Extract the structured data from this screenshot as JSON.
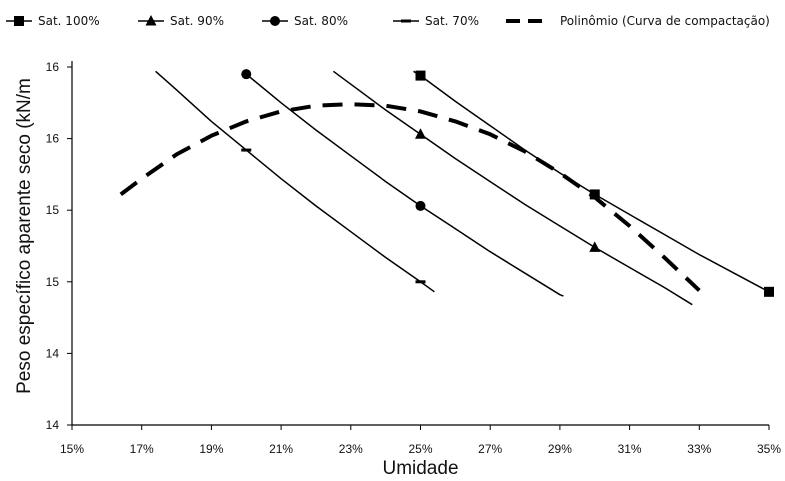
{
  "chart_data": {
    "type": "line",
    "title": "",
    "xlabel": "Umidade",
    "ylabel": "Peso específico aparente seco (kN/m",
    "x_ticks": [
      "15%",
      "17%",
      "19%",
      "21%",
      "23%",
      "25%",
      "27%",
      "29%",
      "31%",
      "33%",
      "35%"
    ],
    "x_range": [
      15,
      35
    ],
    "y_ticks": [
      "14",
      "14",
      "15",
      "15",
      "16",
      "16"
    ],
    "y_range": [
      14,
      16.5
    ],
    "grid": false,
    "legend_position": "top",
    "series": [
      {
        "name": "Sat. 100%",
        "marker": "square",
        "dash": "solid",
        "x": [
          24.8,
          25,
          26,
          27,
          28,
          29,
          30,
          31,
          32,
          33,
          34,
          35
        ],
        "y": [
          16.47,
          16.44,
          16.26,
          16.09,
          15.92,
          15.76,
          15.61,
          15.47,
          15.33,
          15.19,
          15.06,
          14.93
        ],
        "marked_x": [
          25,
          30,
          35
        ],
        "marked_y": [
          16.44,
          15.61,
          14.93
        ]
      },
      {
        "name": "Sat. 90%",
        "marker": "triangle",
        "dash": "solid",
        "x": [
          22.5,
          23,
          24,
          25,
          26,
          27,
          28,
          29,
          30,
          31,
          32,
          32.8
        ],
        "y": [
          16.47,
          16.38,
          16.2,
          16.03,
          15.86,
          15.7,
          15.54,
          15.39,
          15.24,
          15.1,
          14.96,
          14.84
        ],
        "marked_x": [
          25,
          30
        ],
        "marked_y": [
          16.03,
          15.24
        ]
      },
      {
        "name": "Sat. 80%",
        "marker": "circle",
        "dash": "solid",
        "x": [
          19.9,
          20,
          21,
          22,
          23,
          24,
          25,
          26,
          27,
          28,
          29,
          29.1
        ],
        "y": [
          16.47,
          16.45,
          16.25,
          16.06,
          15.88,
          15.7,
          15.53,
          15.37,
          15.21,
          15.06,
          14.91,
          14.9
        ],
        "marked_x": [
          20,
          25
        ],
        "marked_y": [
          16.45,
          15.53
        ]
      },
      {
        "name": "Sat. 70%",
        "marker": "dash",
        "dash": "solid",
        "x": [
          17.4,
          18,
          19,
          20,
          21,
          22,
          23,
          24,
          25,
          25.4
        ],
        "y": [
          16.47,
          16.34,
          16.12,
          15.92,
          15.72,
          15.53,
          15.35,
          15.17,
          15.0,
          14.93
        ],
        "marked_x": [
          20,
          25
        ],
        "marked_y": [
          15.92,
          15.0
        ]
      },
      {
        "name": "Polinômio (Curva de compactação)",
        "marker": "none",
        "dash": "dashed",
        "x": [
          16.4,
          17,
          18,
          19,
          20,
          21,
          22,
          23,
          24,
          25,
          26,
          27,
          28,
          29,
          30,
          31,
          32,
          33
        ],
        "y": [
          15.61,
          15.72,
          15.89,
          16.02,
          16.12,
          16.19,
          16.23,
          16.24,
          16.23,
          16.19,
          16.12,
          16.03,
          15.91,
          15.76,
          15.59,
          15.39,
          15.17,
          14.94
        ]
      }
    ]
  }
}
